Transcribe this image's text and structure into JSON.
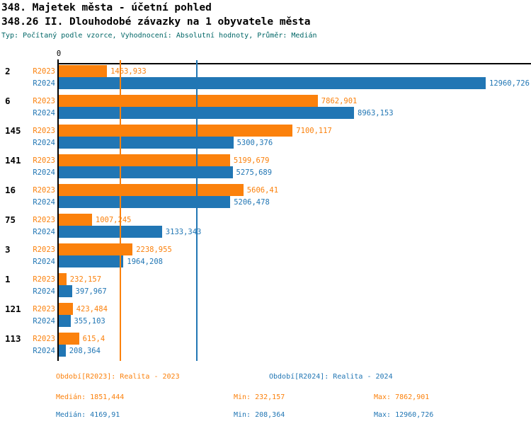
{
  "header": {
    "title1": "348. Majetek města - účetní pohled",
    "title2": "348.26 II. Dlouhodobé závazky na 1 obyvatele města",
    "subtitle": "Typ: Počítaný podle vzorce, Vyhodnocení: Absolutní hodnoty, Průměr: Medián"
  },
  "chart_data": {
    "type": "bar",
    "orientation": "horizontal",
    "axis_zero_label": "0",
    "xlim": [
      0,
      12960.726
    ],
    "grid": "median-lines-only",
    "series": [
      {
        "name": "R2023",
        "color": "#fb810c",
        "median": 1851.444,
        "median_label": "1851,444"
      },
      {
        "name": "R2024",
        "color": "#2176b4",
        "median": 4169.91,
        "median_label": "4169,91"
      }
    ],
    "categories": [
      "2",
      "6",
      "145",
      "141",
      "16",
      "75",
      "3",
      "1",
      "121",
      "113"
    ],
    "rows": [
      {
        "category": "2",
        "values": [
          {
            "series": "R2023",
            "value": 1463.933,
            "label": "1463,933"
          },
          {
            "series": "R2024",
            "value": 12960.726,
            "label": "12960,726"
          }
        ]
      },
      {
        "category": "6",
        "values": [
          {
            "series": "R2023",
            "value": 7862.901,
            "label": "7862,901"
          },
          {
            "series": "R2024",
            "value": 8963.153,
            "label": "8963,153"
          }
        ]
      },
      {
        "category": "145",
        "values": [
          {
            "series": "R2023",
            "value": 7100.117,
            "label": "7100,117"
          },
          {
            "series": "R2024",
            "value": 5300.376,
            "label": "5300,376"
          }
        ]
      },
      {
        "category": "141",
        "values": [
          {
            "series": "R2023",
            "value": 5199.679,
            "label": "5199,679"
          },
          {
            "series": "R2024",
            "value": 5275.689,
            "label": "5275,689"
          }
        ]
      },
      {
        "category": "16",
        "values": [
          {
            "series": "R2023",
            "value": 5606.41,
            "label": "5606,41"
          },
          {
            "series": "R2024",
            "value": 5206.478,
            "label": "5206,478"
          }
        ]
      },
      {
        "category": "75",
        "values": [
          {
            "series": "R2023",
            "value": 1007.245,
            "label": "1007,245"
          },
          {
            "series": "R2024",
            "value": 3133.343,
            "label": "3133,343"
          }
        ]
      },
      {
        "category": "3",
        "values": [
          {
            "series": "R2023",
            "value": 2238.955,
            "label": "2238,955"
          },
          {
            "series": "R2024",
            "value": 1964.208,
            "label": "1964,208"
          }
        ]
      },
      {
        "category": "1",
        "values": [
          {
            "series": "R2023",
            "value": 232.157,
            "label": "232,157"
          },
          {
            "series": "R2024",
            "value": 397.967,
            "label": "397,967"
          }
        ]
      },
      {
        "category": "121",
        "values": [
          {
            "series": "R2023",
            "value": 423.484,
            "label": "423,484"
          },
          {
            "series": "R2024",
            "value": 355.103,
            "label": "355,103"
          }
        ]
      },
      {
        "category": "113",
        "values": [
          {
            "series": "R2023",
            "value": 615.4,
            "label": "615,4"
          },
          {
            "series": "R2024",
            "value": 208.364,
            "label": "208,364"
          }
        ]
      }
    ]
  },
  "legend": {
    "r2023_title": "Období[R2023]: Realita - 2023",
    "r2024_title": "Období[R2024]: Realita - 2024"
  },
  "stats": {
    "rows": [
      {
        "series": "R2023",
        "median": "Medián: 1851,444",
        "min": "Min: 232,157",
        "max": "Max: 7862,901"
      },
      {
        "series": "R2024",
        "median": "Medián: 4169,91",
        "min": "Min: 208,364",
        "max": "Max: 12960,726"
      }
    ]
  },
  "colors": {
    "r2023": "#fb810c",
    "r2024": "#2176b4",
    "axis": "#000000",
    "subtitle": "#006666"
  }
}
